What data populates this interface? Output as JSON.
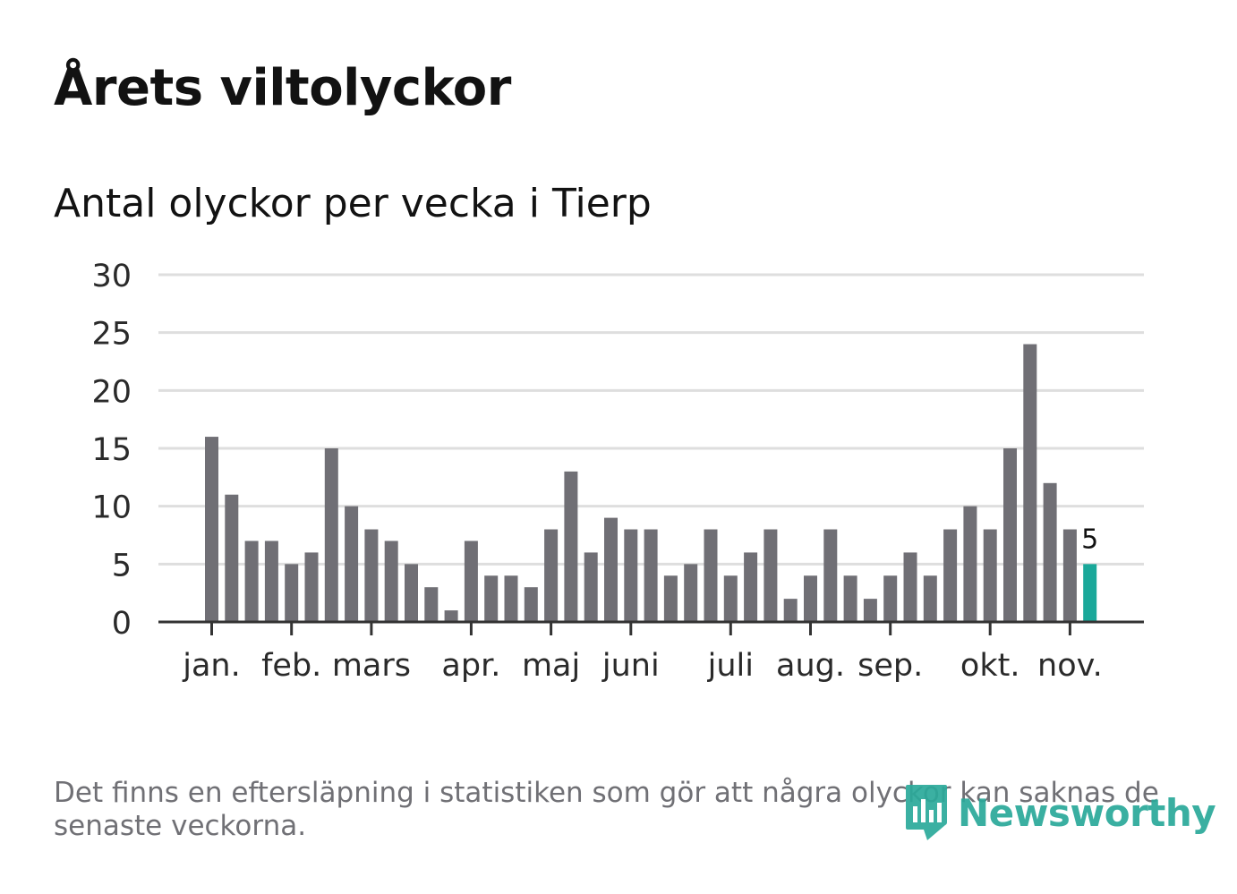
{
  "title": "Årets viltolyckor",
  "subtitle": "Antal olyckor per vecka i Tierp",
  "footnote": "Det finns en eftersläpning i statistiken som gör att några olyckor kan saknas de senaste veckorna.",
  "brand": {
    "name": "Newsworthy",
    "color": "#2aa99a"
  },
  "colors": {
    "bar": "#706f75",
    "highlight": "#1aa89a",
    "grid": "#dedede",
    "axis": "#333333"
  },
  "chart_data": {
    "type": "bar",
    "title": "Antal olyckor per vecka i Tierp",
    "xlabel": "",
    "ylabel": "",
    "ylim": [
      0,
      30
    ],
    "yticks": [
      "0",
      "5",
      "10",
      "15",
      "20",
      "25",
      "30"
    ],
    "grid": true,
    "values": [
      16,
      11,
      7,
      7,
      5,
      6,
      15,
      10,
      8,
      7,
      5,
      3,
      1,
      7,
      4,
      4,
      3,
      8,
      13,
      6,
      9,
      8,
      8,
      4,
      5,
      8,
      4,
      6,
      8,
      2,
      4,
      8,
      4,
      2,
      4,
      6,
      4,
      8,
      10,
      8,
      15,
      24,
      12,
      8,
      5
    ],
    "highlight_index": 44,
    "highlight_label": "5",
    "month_ticks": [
      {
        "label": "jan.",
        "bar_index": 0
      },
      {
        "label": "feb.",
        "bar_index": 4
      },
      {
        "label": "mars",
        "bar_index": 8
      },
      {
        "label": "apr.",
        "bar_index": 13
      },
      {
        "label": "maj",
        "bar_index": 17
      },
      {
        "label": "juni",
        "bar_index": 21
      },
      {
        "label": "juli",
        "bar_index": 26
      },
      {
        "label": "aug.",
        "bar_index": 30
      },
      {
        "label": "sep.",
        "bar_index": 34
      },
      {
        "label": "okt.",
        "bar_index": 39
      },
      {
        "label": "nov.",
        "bar_index": 43
      }
    ]
  }
}
